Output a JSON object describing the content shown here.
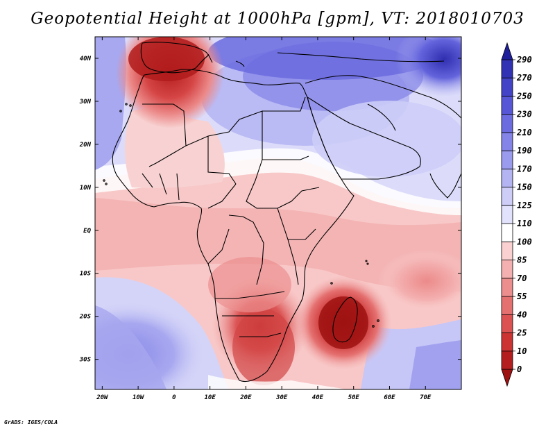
{
  "title": "Geopotential Height at 1000hPa [gpm], VT: 2018010703",
  "footer": "GrADS: IGES/COLA",
  "map": {
    "lon_range": [
      -22,
      80
    ],
    "lat_range": [
      -37,
      45
    ],
    "y_ticks": [
      "40N",
      "30N",
      "20N",
      "10N",
      "EQ",
      "10S",
      "20S",
      "30S"
    ],
    "y_tick_values": [
      40,
      30,
      20,
      10,
      0,
      -10,
      -20,
      -30
    ],
    "x_ticks": [
      "20W",
      "10W",
      "0",
      "10E",
      "20E",
      "30E",
      "40E",
      "50E",
      "60E",
      "70E"
    ],
    "x_tick_values": [
      -20,
      -10,
      0,
      10,
      20,
      30,
      40,
      50,
      60,
      70
    ]
  },
  "colorbar": {
    "levels": [
      "0",
      "10",
      "25",
      "40",
      "55",
      "70",
      "85",
      "100",
      "110",
      "125",
      "150",
      "170",
      "190",
      "210",
      "230",
      "250",
      "270",
      "290"
    ],
    "colors": [
      "#9e1212",
      "#b51e1e",
      "#cc3333",
      "#dc5252",
      "#e57070",
      "#ed8e8e",
      "#f4b0b0",
      "#fad0d0",
      "#ffffff",
      "#e2e2fc",
      "#cdcdf8",
      "#b4b4f3",
      "#9a9aee",
      "#8383e8",
      "#6c6ce0",
      "#5656d6",
      "#4343c8",
      "#3232b4",
      "#1f1f9c"
    ]
  }
}
